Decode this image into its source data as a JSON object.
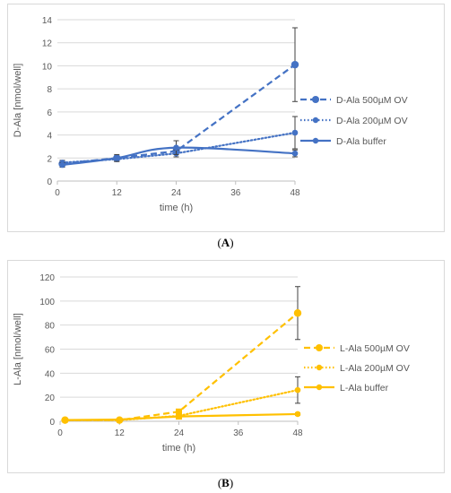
{
  "captions": {
    "a": "A",
    "b": "B"
  },
  "chart_data": [
    {
      "type": "line",
      "panel": "A",
      "title": "",
      "xlabel": "time (h)",
      "ylabel": "D-Ala [nmol/well]",
      "xlim": [
        0,
        48
      ],
      "ylim": [
        0,
        14
      ],
      "xticks": [
        0,
        12,
        24,
        36,
        48
      ],
      "yticks": [
        0,
        2,
        4,
        6,
        8,
        10,
        12,
        14
      ],
      "color": "#4472C4",
      "legend_position": "right",
      "grid": "horizontal",
      "series": [
        {
          "name": "D-Ala 500µM OV",
          "style": "dashed",
          "smooth": false,
          "x": [
            1,
            12,
            24,
            48
          ],
          "y": [
            1.5,
            2.0,
            2.6,
            10.1
          ],
          "err": [
            0.2,
            0.2,
            0.3,
            3.2
          ]
        },
        {
          "name": "D-Ala 200µM OV",
          "style": "dotted",
          "smooth": false,
          "x": [
            1,
            12,
            24,
            48
          ],
          "y": [
            1.6,
            1.9,
            2.4,
            4.2
          ],
          "err": [
            0.2,
            0.2,
            0.3,
            1.4
          ]
        },
        {
          "name": "D-Ala buffer",
          "style": "solid",
          "smooth": true,
          "x": [
            1,
            12,
            24,
            48
          ],
          "y": [
            1.4,
            2.0,
            2.9,
            2.4
          ],
          "err": [
            0.2,
            0.3,
            0.6,
            0.3
          ]
        }
      ]
    },
    {
      "type": "line",
      "panel": "B",
      "title": "",
      "xlabel": "time (h)",
      "ylabel": "L-Ala [nmol/well]",
      "xlim": [
        0,
        48
      ],
      "ylim": [
        0,
        120
      ],
      "xticks": [
        0,
        12,
        24,
        36,
        48
      ],
      "yticks": [
        0,
        20,
        40,
        60,
        80,
        100,
        120
      ],
      "color": "#FFC000",
      "legend_position": "right",
      "grid": "horizontal",
      "series": [
        {
          "name": "L-Ala 500µM OV",
          "style": "dashed",
          "smooth": false,
          "x": [
            1,
            12,
            24,
            48
          ],
          "y": [
            1.0,
            1.0,
            8.0,
            90.0
          ],
          "err": [
            0.5,
            0.5,
            2.0,
            22.0
          ]
        },
        {
          "name": "L-Ala 200µM OV",
          "style": "dotted",
          "smooth": false,
          "x": [
            1,
            12,
            24,
            48
          ],
          "y": [
            1.0,
            1.0,
            4.5,
            26.0
          ],
          "err": [
            0.5,
            0.5,
            1.0,
            11.0
          ]
        },
        {
          "name": "L-Ala buffer",
          "style": "solid",
          "smooth": false,
          "x": [
            1,
            12,
            24,
            48
          ],
          "y": [
            1.0,
            1.5,
            4.0,
            6.0
          ],
          "err": [
            0.3,
            0.3,
            0.8,
            1.0
          ]
        }
      ]
    }
  ]
}
